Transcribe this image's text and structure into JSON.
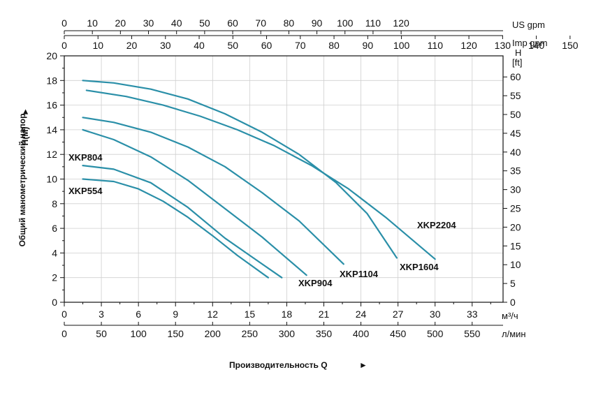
{
  "chart_data": {
    "type": "line",
    "xlabel": "Производительность Q",
    "ylabel": "Общий манометрический напор",
    "ylabel_symbol": "H(M)",
    "arrow_glyph": "►",
    "x_unit": "м³/ч",
    "x_lmin_unit": "л/мин",
    "us_gpm_unit": "US gpm",
    "imp_gpm_unit": "Imp gpm",
    "right_unit_top": "H",
    "right_unit_bottom": "[ft]",
    "xlim": [
      0,
      35.5
    ],
    "ylim": [
      0,
      20
    ],
    "ft_ticks": [
      "0",
      "5",
      "10",
      "15",
      "20",
      "25",
      "30",
      "35",
      "40",
      "45",
      "50",
      "55",
      "60"
    ],
    "grid": true,
    "curve_color": "#2a8fa8",
    "x_ticks": [
      "0",
      "3",
      "6",
      "9",
      "12",
      "15",
      "18",
      "21",
      "24",
      "27",
      "30",
      "33"
    ],
    "lmin_ticks": [
      "0",
      "50",
      "100",
      "150",
      "200",
      "250",
      "300",
      "350",
      "400",
      "450",
      "500",
      "550"
    ],
    "us_gpm_ticks": [
      "0",
      "10",
      "20",
      "30",
      "40",
      "50",
      "60",
      "70",
      "80",
      "90",
      "100",
      "110",
      "120"
    ],
    "imp_gpm_ticks": [
      "0",
      "10",
      "20",
      "30",
      "40",
      "50",
      "60",
      "70",
      "80",
      "90",
      "100",
      "110",
      "120",
      "130",
      "140",
      "150"
    ],
    "y_ticks": [
      "0",
      "2",
      "4",
      "6",
      "8",
      "10",
      "12",
      "14",
      "16",
      "18",
      "20"
    ],
    "series": [
      {
        "name": "XKP554",
        "x": [
          1.5,
          4,
          6,
          8,
          10,
          12,
          14,
          16.5
        ],
        "y": [
          10,
          9.8,
          9.2,
          8.2,
          6.9,
          5.4,
          3.8,
          2
        ]
      },
      {
        "name": "XKP804",
        "x": [
          1.5,
          4,
          7,
          10,
          13,
          15,
          17.6
        ],
        "y": [
          11.1,
          10.8,
          9.7,
          7.7,
          5.2,
          3.8,
          2
        ]
      },
      {
        "name": "XKP904",
        "x": [
          1.5,
          4,
          7,
          10,
          13,
          16,
          19.6
        ],
        "y": [
          14,
          13.2,
          11.8,
          9.9,
          7.6,
          5.3,
          2.2
        ]
      },
      {
        "name": "XKP1104",
        "x": [
          1.5,
          4,
          7,
          10,
          13,
          16,
          19,
          22.6
        ],
        "y": [
          15,
          14.6,
          13.8,
          12.6,
          11,
          8.9,
          6.6,
          3.1
        ]
      },
      {
        "name": "XKP1604",
        "x": [
          1.5,
          4,
          7,
          10,
          13,
          16,
          19,
          22,
          24.5,
          26.9
        ],
        "y": [
          18,
          17.8,
          17.3,
          16.5,
          15.3,
          13.8,
          12,
          9.7,
          7.2,
          3.6
        ]
      },
      {
        "name": "XKP2204",
        "x": [
          1.8,
          5,
          8,
          11,
          14,
          17,
          20,
          23,
          26,
          28,
          30
        ],
        "y": [
          17.2,
          16.7,
          16,
          15.1,
          14,
          12.7,
          11.1,
          9.2,
          6.9,
          5.2,
          3.5
        ]
      }
    ]
  }
}
